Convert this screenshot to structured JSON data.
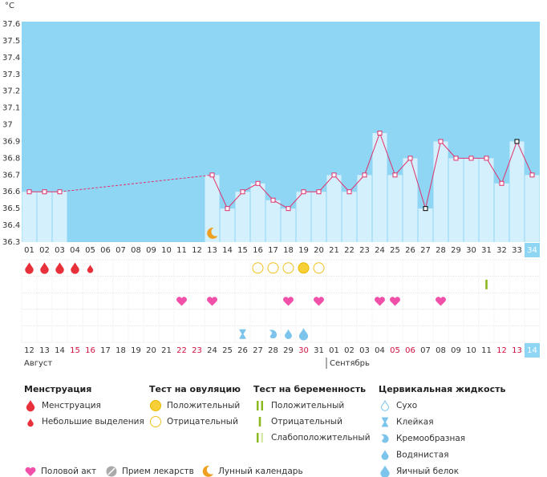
{
  "chart_data": {
    "type": "line",
    "y_label": "°C",
    "categories": [
      "01",
      "02",
      "03",
      "04",
      "05",
      "06",
      "07",
      "08",
      "09",
      "10",
      "11",
      "12",
      "13",
      "14",
      "15",
      "16",
      "17",
      "18",
      "19",
      "20",
      "21",
      "22",
      "23",
      "24",
      "25",
      "26",
      "27",
      "28",
      "29",
      "30",
      "31",
      "32",
      "33",
      "34"
    ],
    "values": [
      36.6,
      36.6,
      36.6,
      null,
      null,
      null,
      null,
      null,
      null,
      null,
      null,
      null,
      36.7,
      36.5,
      36.6,
      36.65,
      36.55,
      36.5,
      36.6,
      36.6,
      36.7,
      36.6,
      36.7,
      36.95,
      36.7,
      36.8,
      36.5,
      36.9,
      36.8,
      36.8,
      36.8,
      36.65,
      36.9,
      36.7
    ],
    "color": "#e0306a",
    "marker_colors": [
      "#e0306a",
      "#e0306a",
      "#e0306a",
      "#e0306a",
      "#e0306a",
      "#e0306a",
      "#e0306a",
      "#e0306a",
      "#e0306a",
      "#e0306a",
      "#e0306a",
      "#e0306a",
      "#e0306a",
      "#e0306a",
      "#e0306a",
      "#e0306a",
      "#e0306a",
      "#e0306a",
      "#e0306a",
      "#e0306a",
      "#e0306a",
      "#e0306a",
      "#e0306a",
      "#e0306a",
      "#e0306a",
      "#e0306a",
      "#000000",
      "#e0306a",
      "#e0306a",
      "#e0306a",
      "#e0306a",
      "#e0306a",
      "#000000",
      "#e0306a"
    ],
    "bar_color": "#d4f0fc",
    "background_color": "#8fd6f5",
    "ylim": [
      36.3,
      37.6
    ],
    "yticks": [
      36.3,
      36.4,
      36.5,
      36.6,
      36.7,
      36.8,
      36.9,
      37,
      37.1,
      37.2,
      37.3,
      37.4,
      37.5,
      37.6
    ]
  },
  "dates": {
    "labels": [
      "12",
      "13",
      "14",
      "15",
      "16",
      "17",
      "18",
      "19",
      "20",
      "21",
      "22",
      "23",
      "24",
      "25",
      "26",
      "27",
      "28",
      "29",
      "30",
      "31",
      "01",
      "02",
      "03",
      "04",
      "05",
      "06",
      "07",
      "08",
      "09",
      "10",
      "11",
      "12",
      "13",
      "14"
    ],
    "weekend": [
      false,
      false,
      false,
      true,
      true,
      false,
      false,
      false,
      false,
      false,
      true,
      true,
      false,
      false,
      false,
      false,
      false,
      false,
      true,
      false,
      false,
      false,
      false,
      false,
      true,
      true,
      false,
      false,
      false,
      false,
      false,
      true,
      true,
      false
    ],
    "weekend_color": "#d01040",
    "months": [
      "Август",
      "Сентябрь"
    ]
  },
  "legend": {
    "groups": [
      {
        "title": "Менструация",
        "items": [
          {
            "label": "Менструация",
            "days": [
              "01",
              "02",
              "03",
              "04"
            ]
          },
          {
            "label": "Небольшие выделения",
            "days": [
              "05"
            ]
          }
        ]
      },
      {
        "title": "Тест на овуляцию",
        "items": [
          {
            "label": "Положительный",
            "days": [
              "19"
            ]
          },
          {
            "label": "Отрицательный",
            "days": [
              "16",
              "17",
              "18",
              "20"
            ]
          }
        ]
      },
      {
        "title": "Тест на беременность",
        "items": [
          {
            "label": "Положительный",
            "days": []
          },
          {
            "label": "Отрицательный",
            "days": [
              "31"
            ]
          },
          {
            "label": "Слабоположительный",
            "days": []
          }
        ]
      },
      {
        "title": "Цервикальная жидкость",
        "items": [
          {
            "label": "Сухо",
            "days": []
          },
          {
            "label": "Клейкая",
            "days": [
              "15"
            ]
          },
          {
            "label": "Кремообразная",
            "days": [
              "17"
            ]
          },
          {
            "label": "Водянистая",
            "days": [
              "18"
            ]
          },
          {
            "label": "Яичный белок",
            "days": [
              "19"
            ]
          }
        ]
      }
    ],
    "other": [
      {
        "label": "Половой акт",
        "days": [
          "11",
          "13",
          "18",
          "20",
          "24",
          "25",
          "28"
        ]
      },
      {
        "label": "Прием лекарств",
        "days": []
      },
      {
        "label": "Лунный календарь",
        "days": [
          "13"
        ]
      }
    ]
  }
}
